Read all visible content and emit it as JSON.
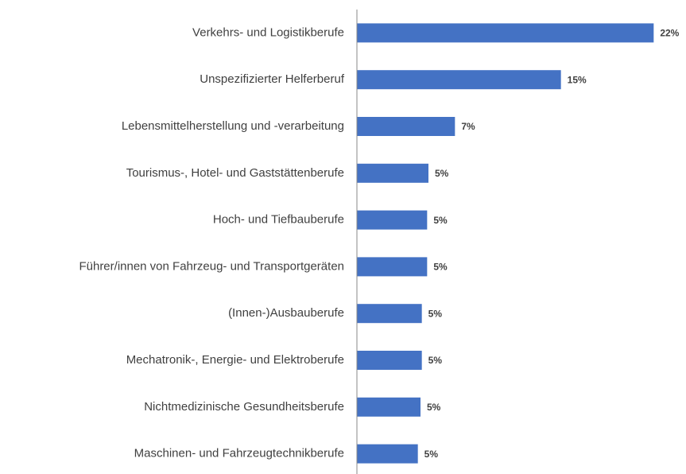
{
  "chart_data": {
    "type": "bar",
    "orientation": "horizontal",
    "categories": [
      "Verkehrs- und Logistikberufe",
      "Unspezifizierter Helferberuf",
      "Lebensmittelherstellung und -verarbeitung",
      "Tourismus-, Hotel- und Gaststättenberufe",
      "Hoch- und Tiefbauberufe",
      "Führer/innen von Fahrzeug- und Transportgeräten",
      "(Innen-)Ausbauberufe",
      "Mechatronik-, Energie- und Elektroberufe",
      "Nichtmedizinische Gesundheitsberufe",
      "Maschinen- und Fahrzeugtechnikberufe"
    ],
    "values": [
      22.4,
      15.4,
      7.4,
      5.4,
      5.3,
      5.3,
      4.9,
      4.9,
      4.8,
      4.6
    ],
    "value_labels": [
      "22%",
      "15%",
      "7%",
      "5%",
      "5%",
      "5%",
      "5%",
      "5%",
      "5%",
      "5%"
    ],
    "color": "#4472c4",
    "xlim": [
      0,
      24
    ]
  }
}
